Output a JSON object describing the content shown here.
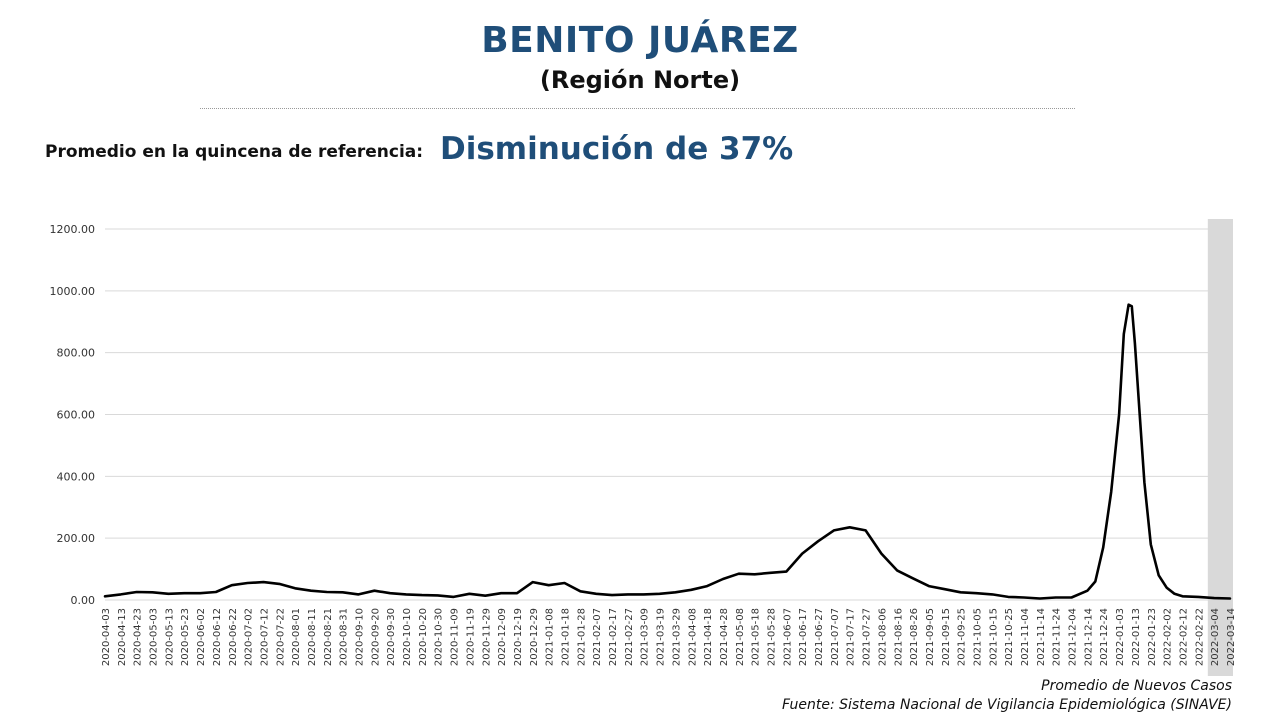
{
  "header": {
    "title": "BENITO JUÁREZ",
    "subtitle": "(Región Norte)",
    "reference_label": "Promedio en la quincena de referencia:",
    "reference_value": "Disminución de 37%"
  },
  "footer": {
    "series_label": "Promedio de Nuevos Casos",
    "source": "Fuente: Sistema Nacional de Vigilancia Epidemiológica (SINAVE)"
  },
  "colors": {
    "title": "#1f4e79",
    "line": "#000000",
    "grid": "#d9d9d9",
    "shaded_region": "#d9d9d9"
  },
  "chart_data": {
    "type": "line",
    "title": "",
    "xlabel": "",
    "ylabel": "",
    "ylim": [
      0,
      1200
    ],
    "y_ticks": [
      "0.00",
      "200.00",
      "400.00",
      "600.00",
      "800.00",
      "1000.00",
      "1200.00"
    ],
    "grid": "horizontal",
    "x_ticks": [
      "2020-04-03",
      "2020-04-13",
      "2020-04-23",
      "2020-05-03",
      "2020-05-13",
      "2020-05-23",
      "2020-06-02",
      "2020-06-12",
      "2020-06-22",
      "2020-07-02",
      "2020-07-12",
      "2020-07-22",
      "2020-08-01",
      "2020-08-11",
      "2020-08-21",
      "2020-08-31",
      "2020-09-10",
      "2020-09-20",
      "2020-09-30",
      "2020-10-10",
      "2020-10-20",
      "2020-10-30",
      "2020-11-09",
      "2020-11-19",
      "2020-11-29",
      "2020-12-09",
      "2020-12-19",
      "2020-12-29",
      "2021-01-08",
      "2021-01-18",
      "2021-01-28",
      "2021-02-07",
      "2021-02-17",
      "2021-02-27",
      "2021-03-09",
      "2021-03-19",
      "2021-03-29",
      "2021-04-08",
      "2021-04-18",
      "2021-04-28",
      "2021-05-08",
      "2021-05-18",
      "2021-05-28",
      "2021-06-07",
      "2021-06-17",
      "2021-06-27",
      "2021-07-07",
      "2021-07-17",
      "2021-07-27",
      "2021-08-06",
      "2021-08-16",
      "2021-08-26",
      "2021-09-05",
      "2021-09-15",
      "2021-09-25",
      "2021-10-05",
      "2021-10-15",
      "2021-10-25",
      "2021-11-04",
      "2021-11-14",
      "2021-11-24",
      "2021-12-04",
      "2021-12-14",
      "2021-12-24",
      "2022-01-03",
      "2022-01-13",
      "2022-01-23",
      "2022-02-02",
      "2022-02-12",
      "2022-02-22",
      "2022-03-04",
      "2022-03-14"
    ],
    "shaded_from": "2022-02-28",
    "series": [
      {
        "name": "",
        "x": [
          "2020-04-03",
          "2020-04-13",
          "2020-04-23",
          "2020-05-03",
          "2020-05-13",
          "2020-05-23",
          "2020-06-02",
          "2020-06-12",
          "2020-06-22",
          "2020-07-02",
          "2020-07-12",
          "2020-07-22",
          "2020-08-01",
          "2020-08-11",
          "2020-08-21",
          "2020-08-31",
          "2020-09-10",
          "2020-09-20",
          "2020-09-30",
          "2020-10-10",
          "2020-10-20",
          "2020-10-30",
          "2020-11-09",
          "2020-11-19",
          "2020-11-29",
          "2020-12-09",
          "2020-12-19",
          "2020-12-29",
          "2021-01-08",
          "2021-01-18",
          "2021-01-28",
          "2021-02-07",
          "2021-02-17",
          "2021-02-27",
          "2021-03-09",
          "2021-03-19",
          "2021-03-29",
          "2021-04-08",
          "2021-04-18",
          "2021-04-28",
          "2021-05-08",
          "2021-05-18",
          "2021-05-28",
          "2021-06-07",
          "2021-06-17",
          "2021-06-27",
          "2021-07-07",
          "2021-07-17",
          "2021-07-27",
          "2021-08-06",
          "2021-08-16",
          "2021-08-26",
          "2021-09-05",
          "2021-09-15",
          "2021-09-25",
          "2021-10-05",
          "2021-10-15",
          "2021-10-25",
          "2021-11-04",
          "2021-11-14",
          "2021-11-24",
          "2021-12-04",
          "2021-12-14",
          "2021-12-19",
          "2021-12-24",
          "2021-12-29",
          "2022-01-03",
          "2022-01-06",
          "2022-01-09",
          "2022-01-11",
          "2022-01-13",
          "2022-01-16",
          "2022-01-19",
          "2022-01-23",
          "2022-01-28",
          "2022-02-02",
          "2022-02-07",
          "2022-02-12",
          "2022-02-22",
          "2022-03-04",
          "2022-03-14"
        ],
        "y": [
          12,
          18,
          26,
          25,
          20,
          22,
          22,
          26,
          48,
          55,
          58,
          52,
          38,
          30,
          26,
          25,
          18,
          30,
          22,
          18,
          16,
          15,
          10,
          20,
          14,
          22,
          22,
          58,
          48,
          55,
          28,
          20,
          16,
          18,
          18,
          20,
          25,
          33,
          45,
          68,
          85,
          83,
          88,
          92,
          150,
          190,
          225,
          235,
          225,
          150,
          95,
          70,
          45,
          35,
          25,
          22,
          18,
          10,
          8,
          5,
          8,
          8,
          30,
          60,
          170,
          350,
          600,
          860,
          955,
          950,
          830,
          600,
          380,
          180,
          80,
          40,
          20,
          12,
          10,
          6,
          5
        ]
      }
    ]
  }
}
